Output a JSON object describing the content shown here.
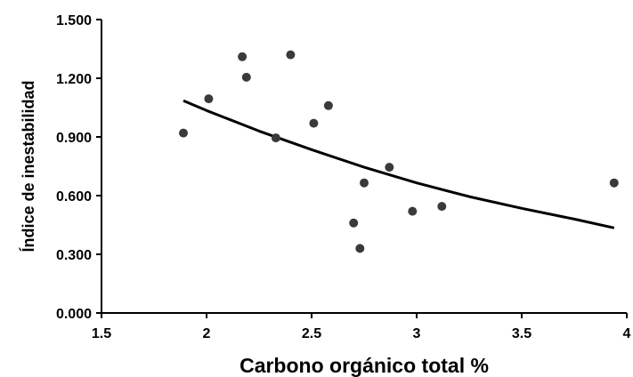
{
  "chart_data": {
    "type": "scatter",
    "xlabel": "Carbono orgánico total %",
    "ylabel": "Índice de inestabilidad",
    "xlim": [
      1.5,
      4
    ],
    "ylim": [
      0,
      1.5
    ],
    "x_ticks": [
      1.5,
      2,
      2.5,
      3,
      3.5,
      4
    ],
    "x_tick_labels": [
      "1.5",
      "2",
      "2.5",
      "3",
      "3.5",
      "4"
    ],
    "y_ticks": [
      0,
      0.3,
      0.6,
      0.9,
      1.2,
      1.5
    ],
    "y_tick_labels": [
      "0.000",
      "0.300",
      "0.600",
      "0.900",
      "1.200",
      "1.500"
    ],
    "grid": false,
    "legend": "none",
    "series": [
      {
        "points": [
          {
            "x": 1.89,
            "y": 0.92
          },
          {
            "x": 2.01,
            "y": 1.095
          },
          {
            "x": 2.17,
            "y": 1.31
          },
          {
            "x": 2.19,
            "y": 1.205
          },
          {
            "x": 2.33,
            "y": 0.895
          },
          {
            "x": 2.4,
            "y": 1.32
          },
          {
            "x": 2.51,
            "y": 0.97
          },
          {
            "x": 2.58,
            "y": 1.06
          },
          {
            "x": 2.7,
            "y": 0.46
          },
          {
            "x": 2.73,
            "y": 0.33
          },
          {
            "x": 2.75,
            "y": 0.665
          },
          {
            "x": 2.87,
            "y": 0.745
          },
          {
            "x": 2.98,
            "y": 0.52
          },
          {
            "x": 3.12,
            "y": 0.545
          },
          {
            "x": 3.94,
            "y": 0.665
          }
        ]
      }
    ],
    "trendline": {
      "x": [
        1.89,
        2.0,
        2.25,
        2.5,
        2.75,
        3.0,
        3.25,
        3.5,
        3.75,
        3.94
      ],
      "y": [
        1.085,
        1.035,
        0.93,
        0.835,
        0.745,
        0.665,
        0.595,
        0.535,
        0.48,
        0.435
      ]
    }
  }
}
